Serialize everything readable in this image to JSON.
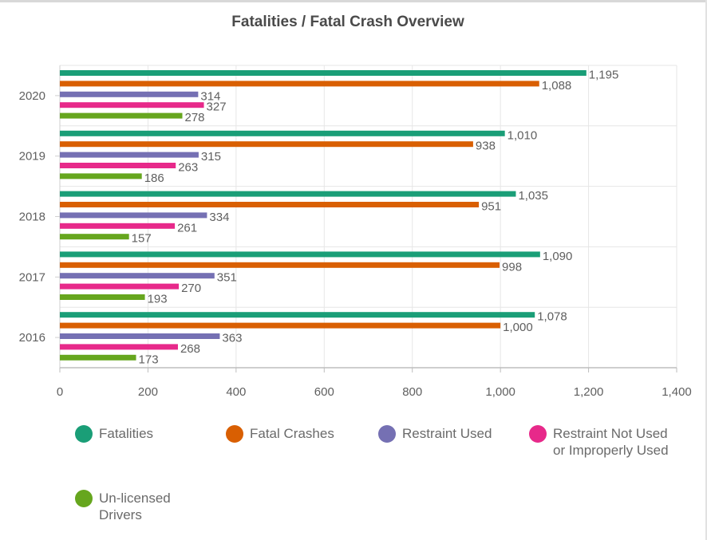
{
  "title": "Fatalities / Fatal Crash Overview",
  "chart_data": {
    "type": "bar",
    "orientation": "horizontal",
    "title": "Fatalities / Fatal Crash Overview",
    "categories": [
      "2020",
      "2019",
      "2018",
      "2017",
      "2016"
    ],
    "series": [
      {
        "name": "Fatalities",
        "color": "#1a9e77",
        "values": [
          1195,
          1010,
          1035,
          1090,
          1078
        ]
      },
      {
        "name": "Fatal Crashes",
        "color": "#d95f02",
        "values": [
          1088,
          938,
          951,
          998,
          1000
        ]
      },
      {
        "name": "Restraint Used",
        "color": "#7570b3",
        "values": [
          314,
          315,
          334,
          351,
          363
        ]
      },
      {
        "name": "Restraint Not Used or Improperly Used",
        "color": "#e7298a",
        "values": [
          327,
          263,
          261,
          270,
          268
        ]
      },
      {
        "name": "Un-licensed Drivers",
        "color": "#66a61e",
        "values": [
          278,
          186,
          157,
          193,
          173
        ]
      }
    ],
    "xlim": [
      0,
      1400
    ],
    "xticks": [
      0,
      200,
      400,
      600,
      800,
      1000,
      1200,
      1400
    ],
    "xtick_labels": [
      "0",
      "200",
      "400",
      "600",
      "800",
      "1,000",
      "1,200",
      "1,400"
    ],
    "grid": true,
    "legend_position": "bottom"
  }
}
